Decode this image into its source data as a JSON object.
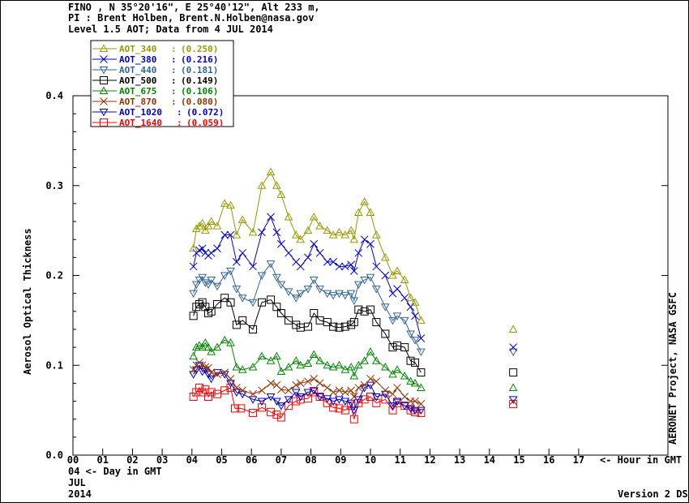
{
  "header": {
    "line1": "FINO , N 35°20'16\", E 25°40'12\", Alt 233 m,",
    "line2": "PI : Brent Holben, Brent.N.Holben@nasa.gov",
    "line3": "Level 1.5 AOT; Data from 4 JUL 2014"
  },
  "footer": {
    "day_label": "04  <- Day in GMT",
    "month": "JUL",
    "year": "2014",
    "version": "Version 2 DS"
  },
  "chart_data": {
    "type": "line",
    "ylabel": "Aerosol Optical Thickness",
    "xlabel": "<- Hour in GMT",
    "right_label": "AERONET Project, NASA GSFC",
    "xlim": [
      0,
      20
    ],
    "ylim": [
      0.0,
      0.4
    ],
    "x_ticks": [
      "00",
      "01",
      "02",
      "03",
      "04",
      "05",
      "06",
      "07",
      "08",
      "09",
      "10",
      "11",
      "12",
      "13",
      "14",
      "15",
      "16",
      "17"
    ],
    "y_ticks": [
      "0.0",
      "0.1",
      "0.2",
      "0.3",
      "0.4"
    ],
    "legend_position": "top-left",
    "series": [
      {
        "name": "AOT_1640",
        "mean": "(0.059)",
        "color": "#ff0000",
        "marker": "square",
        "x": [
          4.05,
          4.15,
          4.25,
          4.35,
          4.45,
          4.55,
          4.65,
          4.85,
          5.1,
          5.3,
          5.45,
          5.65,
          6.05,
          6.35,
          6.65,
          6.85,
          7.0,
          7.25,
          7.5,
          7.65,
          7.9,
          8.1,
          8.3,
          8.55,
          8.75,
          8.95,
          9.15,
          9.35,
          9.45,
          9.6,
          9.8,
          10.0,
          10.2,
          10.5,
          10.75,
          10.9,
          11.15,
          11.35,
          11.5,
          11.7,
          14.8
        ],
        "y": [
          0.065,
          0.07,
          0.075,
          0.07,
          0.073,
          0.065,
          0.07,
          0.068,
          0.072,
          0.075,
          0.052,
          0.052,
          0.047,
          0.053,
          0.048,
          0.045,
          0.042,
          0.055,
          0.06,
          0.062,
          0.063,
          0.07,
          0.065,
          0.058,
          0.053,
          0.052,
          0.05,
          0.055,
          0.04,
          0.058,
          0.062,
          0.065,
          0.058,
          0.062,
          0.05,
          0.058,
          0.055,
          0.05,
          0.048,
          0.047,
          0.057
        ]
      },
      {
        "name": "AOT_1020",
        "mean": "(0.072)",
        "color": "#0000cc",
        "marker": "triangle-down",
        "x": [
          4.05,
          4.15,
          4.25,
          4.35,
          4.45,
          4.55,
          4.65,
          4.85,
          5.1,
          5.3,
          5.5,
          5.7,
          6.05,
          6.35,
          6.65,
          6.85,
          7.0,
          7.25,
          7.5,
          7.65,
          7.9,
          8.1,
          8.3,
          8.55,
          8.75,
          8.95,
          9.15,
          9.35,
          9.45,
          9.6,
          9.8,
          10.0,
          10.2,
          10.5,
          10.75,
          10.9,
          11.15,
          11.35,
          11.5,
          11.7,
          14.8
        ],
        "y": [
          0.09,
          0.095,
          0.1,
          0.093,
          0.095,
          0.09,
          0.085,
          0.092,
          0.09,
          0.08,
          0.07,
          0.068,
          0.062,
          0.06,
          0.065,
          0.06,
          0.055,
          0.062,
          0.07,
          0.065,
          0.07,
          0.072,
          0.065,
          0.063,
          0.06,
          0.062,
          0.06,
          0.058,
          0.05,
          0.062,
          0.075,
          0.078,
          0.065,
          0.068,
          0.055,
          0.06,
          0.055,
          0.052,
          0.05,
          0.05,
          0.062
        ]
      },
      {
        "name": "AOT_870",
        "mean": "(0.080)",
        "color": "#993300",
        "marker": "x",
        "x": [
          4.05,
          4.15,
          4.25,
          4.35,
          4.45,
          4.55,
          4.65,
          4.85,
          5.1,
          5.3,
          5.5,
          5.7,
          6.05,
          6.35,
          6.65,
          6.85,
          7.0,
          7.25,
          7.5,
          7.65,
          7.9,
          8.1,
          8.3,
          8.55,
          8.75,
          8.95,
          9.15,
          9.35,
          9.45,
          9.6,
          9.8,
          10.0,
          10.2,
          10.5,
          10.75,
          10.9,
          11.15,
          11.35,
          11.5,
          11.7,
          14.8
        ],
        "y": [
          0.095,
          0.1,
          0.103,
          0.1,
          0.098,
          0.097,
          0.092,
          0.09,
          0.092,
          0.085,
          0.075,
          0.072,
          0.068,
          0.072,
          0.08,
          0.078,
          0.073,
          0.072,
          0.078,
          0.08,
          0.082,
          0.085,
          0.08,
          0.075,
          0.07,
          0.072,
          0.07,
          0.072,
          0.065,
          0.075,
          0.078,
          0.085,
          0.082,
          0.072,
          0.068,
          0.075,
          0.065,
          0.06,
          0.06,
          0.057,
          0.06
        ]
      },
      {
        "name": "AOT_675",
        "mean": "(0.106)",
        "color": "#008800",
        "marker": "triangle-up",
        "x": [
          4.05,
          4.15,
          4.25,
          4.35,
          4.45,
          4.55,
          4.65,
          4.85,
          5.1,
          5.3,
          5.5,
          5.7,
          6.05,
          6.35,
          6.65,
          6.85,
          7.0,
          7.25,
          7.5,
          7.65,
          7.9,
          8.1,
          8.3,
          8.55,
          8.75,
          8.95,
          9.15,
          9.35,
          9.45,
          9.6,
          9.8,
          10.0,
          10.2,
          10.5,
          10.75,
          10.9,
          11.15,
          11.35,
          11.5,
          11.7,
          14.8
        ],
        "y": [
          0.11,
          0.12,
          0.122,
          0.12,
          0.125,
          0.12,
          0.115,
          0.12,
          0.128,
          0.125,
          0.098,
          0.095,
          0.098,
          0.11,
          0.105,
          0.11,
          0.093,
          0.098,
          0.105,
          0.1,
          0.102,
          0.112,
          0.105,
          0.1,
          0.098,
          0.1,
          0.095,
          0.098,
          0.088,
          0.1,
          0.105,
          0.115,
          0.105,
          0.098,
          0.09,
          0.095,
          0.088,
          0.082,
          0.08,
          0.075,
          0.075
        ]
      },
      {
        "name": "AOT_500",
        "mean": "(0.149)",
        "color": "#000000",
        "marker": "square",
        "x": [
          4.05,
          4.15,
          4.25,
          4.35,
          4.45,
          4.55,
          4.65,
          4.85,
          5.1,
          5.3,
          5.5,
          5.7,
          6.05,
          6.35,
          6.65,
          6.85,
          7.0,
          7.25,
          7.5,
          7.65,
          7.9,
          8.1,
          8.3,
          8.55,
          8.75,
          8.95,
          9.15,
          9.35,
          9.45,
          9.6,
          9.8,
          10.0,
          10.2,
          10.5,
          10.75,
          10.9,
          11.15,
          11.35,
          11.5,
          11.7,
          14.8
        ],
        "y": [
          0.155,
          0.165,
          0.168,
          0.17,
          0.165,
          0.158,
          0.16,
          0.168,
          0.175,
          0.17,
          0.145,
          0.15,
          0.14,
          0.17,
          0.173,
          0.165,
          0.158,
          0.15,
          0.145,
          0.142,
          0.143,
          0.158,
          0.15,
          0.148,
          0.143,
          0.142,
          0.143,
          0.145,
          0.148,
          0.162,
          0.16,
          0.162,
          0.148,
          0.135,
          0.12,
          0.122,
          0.12,
          0.105,
          0.103,
          0.092,
          0.092
        ]
      },
      {
        "name": "AOT_440",
        "mean": "(0.181)",
        "color": "#336699",
        "marker": "triangle-down",
        "x": [
          4.05,
          4.15,
          4.25,
          4.35,
          4.45,
          4.55,
          4.65,
          4.85,
          5.1,
          5.3,
          5.5,
          5.7,
          6.05,
          6.35,
          6.65,
          6.85,
          7.0,
          7.25,
          7.5,
          7.65,
          7.9,
          8.1,
          8.3,
          8.55,
          8.75,
          8.95,
          9.15,
          9.35,
          9.45,
          9.6,
          9.8,
          10.0,
          10.2,
          10.5,
          10.75,
          10.9,
          11.15,
          11.35,
          11.5,
          11.7,
          14.8
        ],
        "y": [
          0.18,
          0.19,
          0.195,
          0.198,
          0.192,
          0.19,
          0.195,
          0.188,
          0.2,
          0.205,
          0.185,
          0.175,
          0.17,
          0.2,
          0.213,
          0.198,
          0.19,
          0.182,
          0.175,
          0.18,
          0.185,
          0.195,
          0.185,
          0.18,
          0.178,
          0.18,
          0.178,
          0.18,
          0.172,
          0.19,
          0.195,
          0.198,
          0.185,
          0.165,
          0.15,
          0.155,
          0.15,
          0.135,
          0.128,
          0.115,
          0.115
        ]
      },
      {
        "name": "AOT_380",
        "mean": "(0.216)",
        "color": "#0000dd",
        "marker": "x",
        "x": [
          4.05,
          4.15,
          4.25,
          4.35,
          4.45,
          4.55,
          4.65,
          4.85,
          5.1,
          5.3,
          5.5,
          5.7,
          6.05,
          6.35,
          6.65,
          6.85,
          7.0,
          7.25,
          7.5,
          7.65,
          7.9,
          8.1,
          8.3,
          8.55,
          8.75,
          8.95,
          9.15,
          9.35,
          9.45,
          9.6,
          9.8,
          10.0,
          10.2,
          10.5,
          10.75,
          10.9,
          11.15,
          11.35,
          11.5,
          11.7,
          14.8
        ],
        "y": [
          0.21,
          0.225,
          0.228,
          0.23,
          0.225,
          0.222,
          0.225,
          0.23,
          0.245,
          0.245,
          0.215,
          0.225,
          0.21,
          0.248,
          0.265,
          0.248,
          0.235,
          0.225,
          0.215,
          0.21,
          0.22,
          0.235,
          0.225,
          0.215,
          0.215,
          0.21,
          0.21,
          0.212,
          0.205,
          0.225,
          0.24,
          0.235,
          0.21,
          0.2,
          0.18,
          0.185,
          0.175,
          0.165,
          0.155,
          0.13,
          0.12
        ]
      },
      {
        "name": "AOT_340",
        "mean": "(0.250)",
        "color": "#999900",
        "marker": "triangle-up",
        "x": [
          4.05,
          4.15,
          4.25,
          4.35,
          4.45,
          4.55,
          4.65,
          4.85,
          5.1,
          5.3,
          5.5,
          5.7,
          6.05,
          6.35,
          6.65,
          6.85,
          7.0,
          7.25,
          7.5,
          7.65,
          7.9,
          8.1,
          8.3,
          8.55,
          8.75,
          8.95,
          9.15,
          9.35,
          9.45,
          9.6,
          9.8,
          10.0,
          10.2,
          10.5,
          10.75,
          10.9,
          11.15,
          11.35,
          11.5,
          11.7,
          14.8
        ],
        "y": [
          0.23,
          0.252,
          0.255,
          0.258,
          0.25,
          0.255,
          0.26,
          0.255,
          0.28,
          0.278,
          0.245,
          0.262,
          0.248,
          0.3,
          0.315,
          0.3,
          0.29,
          0.265,
          0.245,
          0.24,
          0.25,
          0.265,
          0.255,
          0.25,
          0.245,
          0.248,
          0.245,
          0.25,
          0.24,
          0.27,
          0.282,
          0.27,
          0.245,
          0.22,
          0.2,
          0.205,
          0.195,
          0.175,
          0.17,
          0.15,
          0.14
        ]
      }
    ]
  }
}
